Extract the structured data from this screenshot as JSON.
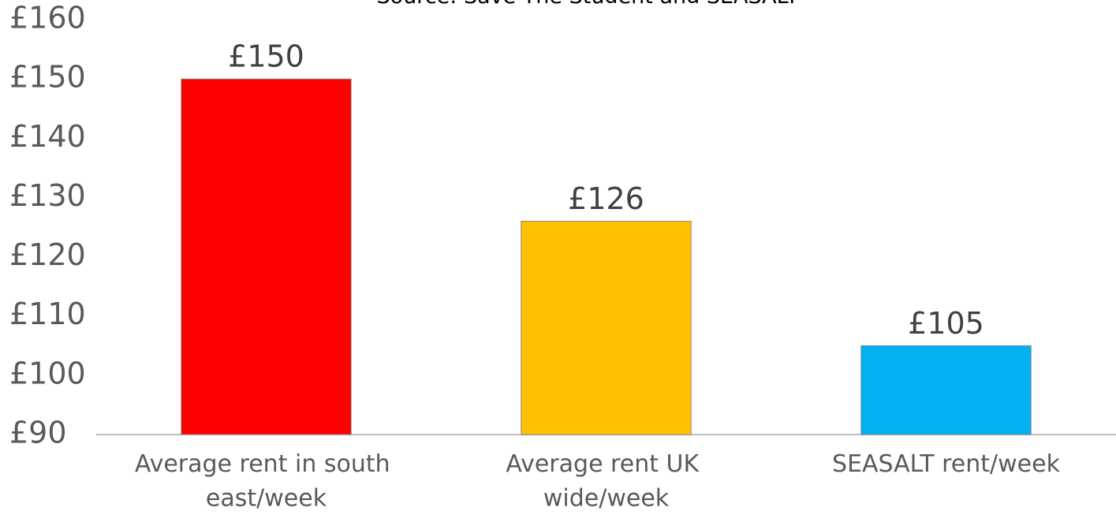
{
  "chart_data": {
    "type": "bar",
    "subtitle": "Source: Save The Student and SEASALT",
    "categories": [
      "Average rent in south east/week",
      "Average rent UK wide/week",
      "SEASALT rent/week"
    ],
    "values": [
      150,
      126,
      105
    ],
    "value_labels": [
      "£150",
      "£126",
      "£105"
    ],
    "colors": [
      "#ff0000",
      "#ffc000",
      "#00b0f0"
    ],
    "ylim": [
      90,
      160
    ],
    "yticks": [
      {
        "value": 90,
        "label": "£90"
      },
      {
        "value": 100,
        "label": "£100"
      },
      {
        "value": 110,
        "label": "£110"
      },
      {
        "value": 120,
        "label": "£120"
      },
      {
        "value": 130,
        "label": "£130"
      },
      {
        "value": 140,
        "label": "£140"
      },
      {
        "value": 150,
        "label": "£150"
      },
      {
        "value": 160,
        "label": "£160"
      }
    ],
    "grid": false
  }
}
